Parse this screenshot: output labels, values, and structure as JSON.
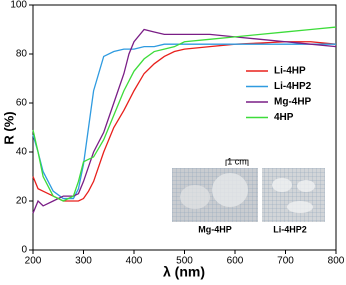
{
  "chart_data": {
    "type": "line",
    "xlabel": "λ (nm)",
    "ylabel": "R (%)",
    "x": [
      200,
      210,
      220,
      240,
      260,
      280,
      290,
      300,
      310,
      320,
      340,
      360,
      380,
      390,
      400,
      420,
      440,
      460,
      480,
      500,
      550,
      600,
      650,
      700,
      750,
      800
    ],
    "series": [
      {
        "name": "Li-4HP",
        "color": "#e8201c",
        "values": [
          30,
          25,
          24,
          22,
          20,
          20,
          20,
          21,
          24,
          28,
          40,
          50,
          57,
          61,
          65,
          72,
          76,
          79,
          81,
          82,
          83,
          84,
          84.5,
          85,
          85,
          84
        ]
      },
      {
        "name": "Li-4HP2",
        "color": "#2f9be0",
        "values": [
          47,
          40,
          32,
          24,
          21,
          21,
          25,
          35,
          50,
          65,
          79,
          81,
          82,
          82,
          82,
          83,
          83,
          84,
          84,
          84,
          84,
          84,
          84,
          84,
          84,
          84
        ]
      },
      {
        "name": "Mg-4HP",
        "color": "#7a1e86",
        "values": [
          15,
          20,
          18,
          20,
          22,
          22,
          23,
          28,
          34,
          40,
          48,
          60,
          72,
          80,
          85,
          90,
          89,
          88,
          88,
          88,
          88,
          87,
          86,
          85,
          84,
          83
        ]
      },
      {
        "name": "4HP",
        "color": "#3ddc3a",
        "values": [
          49,
          40,
          30,
          22,
          20,
          22,
          28,
          36,
          37,
          38,
          45,
          55,
          65,
          69,
          73,
          78,
          81,
          82,
          83,
          85,
          86,
          87,
          88,
          89,
          90,
          91
        ]
      }
    ],
    "xlim": [
      200,
      800
    ],
    "xticks": [
      200,
      300,
      400,
      500,
      600,
      700,
      800
    ],
    "ylim": [
      0,
      100
    ],
    "yticks": [
      0,
      20,
      40,
      60,
      80,
      100
    ],
    "inset": {
      "scale_label": "1 cm",
      "labels": [
        "Mg-4HP",
        "Li-4HP2"
      ]
    }
  }
}
